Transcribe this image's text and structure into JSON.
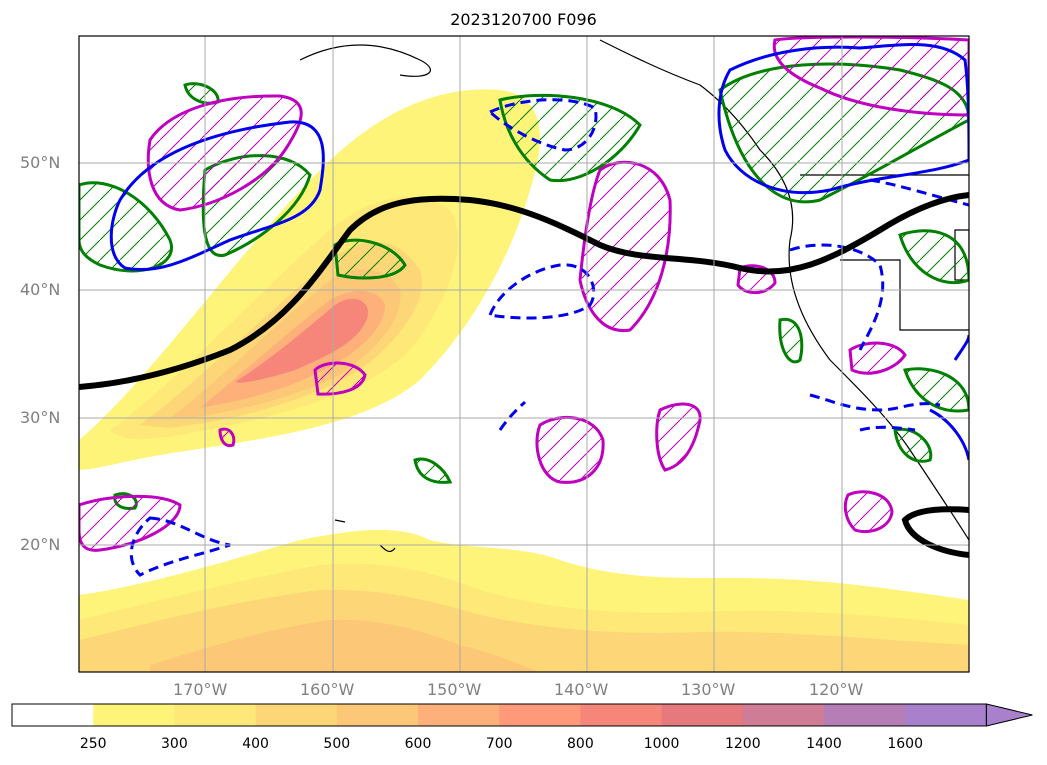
{
  "title": "2023120700 F096",
  "lon_labels": [
    "170°W",
    "160°W",
    "150°W",
    "140°W",
    "130°W",
    "120°W"
  ],
  "lat_labels": [
    "50°N",
    "40°N",
    "30°N",
    "20°N"
  ],
  "colorbar": {
    "ticks": [
      "250",
      "300",
      "400",
      "500",
      "600",
      "700",
      "800",
      "1000",
      "1200",
      "1400",
      "1600"
    ],
    "colors": [
      "#ffffff",
      "#fff47a",
      "#fee877",
      "#fdd777",
      "#fcc877",
      "#fdb07a",
      "#fe9a7a",
      "#f6857a",
      "#e5797e",
      "#cf7c96",
      "#b57eb7",
      "#a880cc"
    ],
    "extend": "max"
  },
  "map_legend_colors": {
    "jet_contour": "#000000",
    "magenta_hatched": "#c000c0",
    "green_hatched": "#008000",
    "blue_solid": "#0000ee",
    "blue_dashed": "#0000ee"
  }
}
